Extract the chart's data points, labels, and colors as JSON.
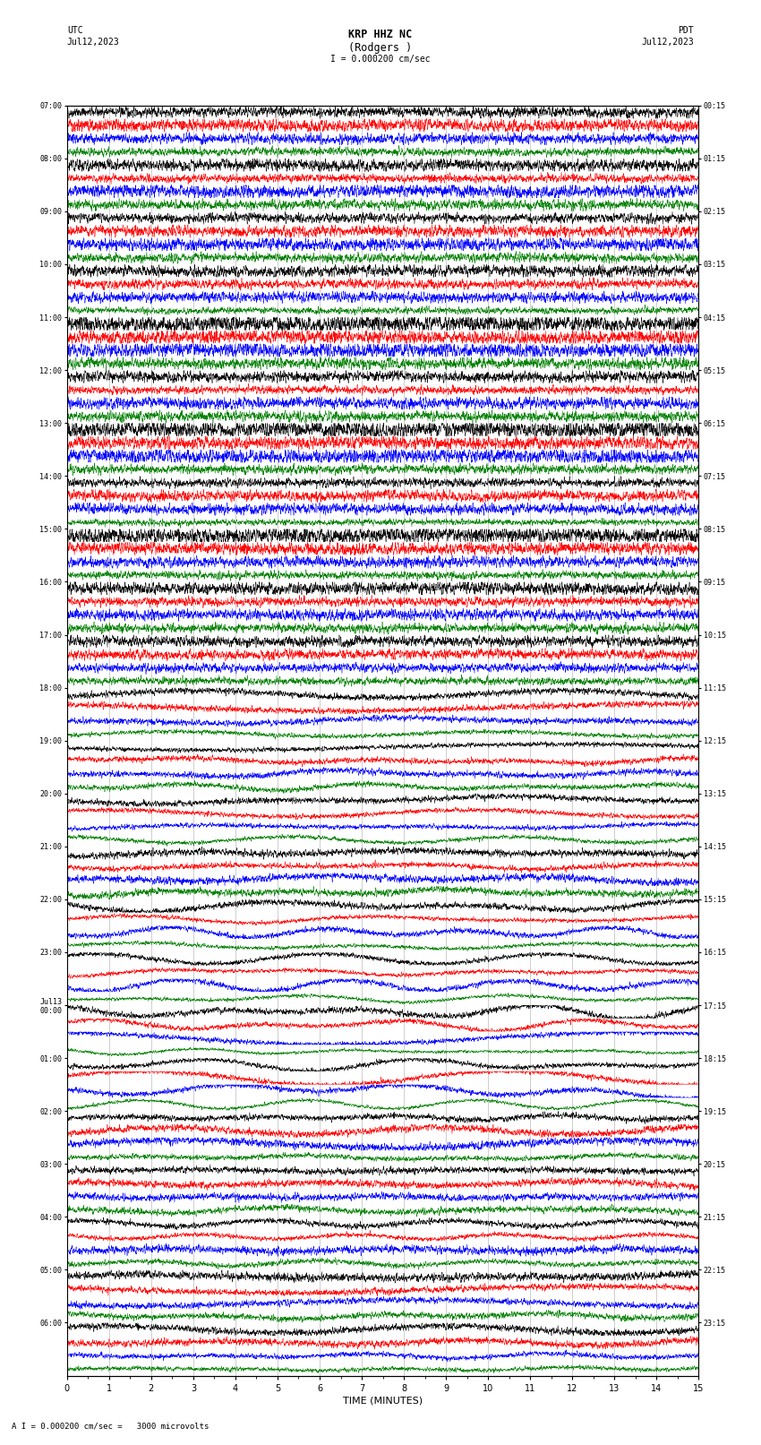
{
  "title_line1": "KRP HHZ NC",
  "title_line2": "(Rodgers )",
  "scale_label": "I = 0.000200 cm/sec",
  "bottom_label": "A I = 0.000200 cm/sec =   3000 microvolts",
  "xlabel": "TIME (MINUTES)",
  "left_times": [
    "07:00",
    "08:00",
    "09:00",
    "10:00",
    "11:00",
    "12:00",
    "13:00",
    "14:00",
    "15:00",
    "16:00",
    "17:00",
    "18:00",
    "19:00",
    "20:00",
    "21:00",
    "22:00",
    "23:00",
    "Jul13\n00:00",
    "01:00",
    "02:00",
    "03:00",
    "04:00",
    "05:00",
    "06:00"
  ],
  "right_times": [
    "00:15",
    "01:15",
    "02:15",
    "03:15",
    "04:15",
    "05:15",
    "06:15",
    "07:15",
    "08:15",
    "09:15",
    "10:15",
    "11:15",
    "12:15",
    "13:15",
    "14:15",
    "15:15",
    "16:15",
    "17:15",
    "18:15",
    "19:15",
    "20:15",
    "21:15",
    "22:15",
    "23:15"
  ],
  "colors": [
    "black",
    "red",
    "blue",
    "green"
  ],
  "n_rows": 24,
  "traces_per_row": 4,
  "fig_width": 8.5,
  "fig_height": 16.13,
  "bg_color": "white",
  "grid_color": "#aaaaaa",
  "grid_linewidth": 0.4
}
